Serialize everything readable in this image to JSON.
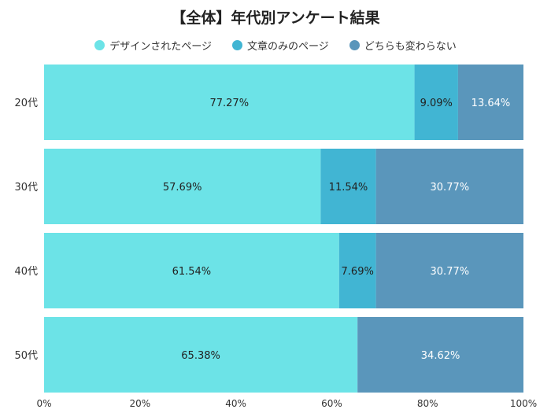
{
  "chart_data": {
    "type": "bar",
    "orientation": "horizontal",
    "stacked": true,
    "title": "【全体】年代別アンケート結果",
    "categories": [
      "20代",
      "30代",
      "40代",
      "50代"
    ],
    "series": [
      {
        "name": "デザインされたページ",
        "color": "#6ce3e7",
        "label_color": "#222222",
        "values": [
          77.27,
          57.69,
          61.54,
          65.38
        ]
      },
      {
        "name": "文章のみのページ",
        "color": "#41b5d3",
        "label_color": "#222222",
        "values": [
          9.09,
          11.54,
          7.69,
          0
        ]
      },
      {
        "name": "どちらも変わらない",
        "color": "#5a96bb",
        "label_color": "#ffffff",
        "values": [
          13.64,
          30.77,
          30.77,
          34.62
        ]
      }
    ],
    "xlim": [
      0,
      100
    ],
    "xticks": [
      "0%",
      "20%",
      "40%",
      "60%",
      "80%",
      "100%"
    ],
    "legend_position": "top",
    "grid": false
  }
}
